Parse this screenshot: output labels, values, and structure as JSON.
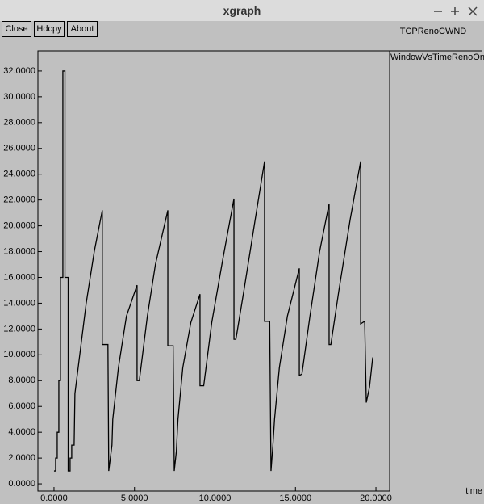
{
  "window": {
    "title": "xgraph",
    "buttons": [
      "Close",
      "Hdcpy",
      "About"
    ]
  },
  "chart_data": {
    "type": "line",
    "ylabel": "TCPRenoCWND",
    "xlabel": "time",
    "series": [
      {
        "name": "WindowVsTimeRenoOne",
        "color": "#000000",
        "x": [
          0,
          0.1,
          0.1,
          0.2,
          0.2,
          0.3,
          0.3,
          0.4,
          0.4,
          0.55,
          0.55,
          0.68,
          0.68,
          0.88,
          0.88,
          1.0,
          1.0,
          1.1,
          1.1,
          1.25,
          1.3,
          1.5,
          2.0,
          2.5,
          3.0,
          3.0,
          3.35,
          3.4,
          3.5,
          3.6,
          3.65,
          4.0,
          4.5,
          5.16,
          5.16,
          5.3,
          5.8,
          6.3,
          7.07,
          7.07,
          7.4,
          7.47,
          7.6,
          7.7,
          8.0,
          8.5,
          9.07,
          9.07,
          9.3,
          9.8,
          10.5,
          11.18,
          11.18,
          11.3,
          11.8,
          12.5,
          13.08,
          13.08,
          13.4,
          13.48,
          13.6,
          13.7,
          14.0,
          14.5,
          15.24,
          15.24,
          15.4,
          15.9,
          16.5,
          17.09,
          17.09,
          17.2,
          17.7,
          18.4,
          19.05,
          19.05,
          19.3,
          19.4,
          19.6,
          19.8
        ],
        "values": [
          1,
          1,
          2,
          2,
          4,
          4,
          8,
          8,
          16,
          16,
          32,
          32,
          16,
          16,
          1,
          1,
          2,
          2,
          3,
          3,
          7,
          9,
          14,
          18,
          21.2,
          10.8,
          10.8,
          1,
          2,
          3,
          5,
          9,
          13,
          15.4,
          8,
          8,
          13,
          17,
          21.2,
          10.7,
          10.7,
          1,
          2.5,
          5,
          9,
          12.5,
          14.7,
          7.6,
          7.6,
          12.5,
          17.5,
          22.1,
          11.2,
          11.2,
          15,
          20.5,
          25,
          12.6,
          12.6,
          1,
          3,
          5,
          9,
          13,
          16.7,
          8.4,
          8.5,
          13,
          18,
          21.7,
          10.8,
          10.8,
          15,
          20.5,
          25,
          12.4,
          12.6,
          6.3,
          7.5,
          9.8
        ]
      }
    ],
    "xlim": [
      -1,
      20.85
    ],
    "ylim": [
      -0.56,
      33.56
    ],
    "xticks": [
      {
        "value": 0,
        "label": "0.0000"
      },
      {
        "value": 5,
        "label": "5.0000"
      },
      {
        "value": 10,
        "label": "10.0000"
      },
      {
        "value": 15,
        "label": "15.0000"
      },
      {
        "value": 20,
        "label": "20.0000"
      }
    ],
    "yticks": [
      {
        "value": 0,
        "label": "0.0000"
      },
      {
        "value": 2,
        "label": "2.0000"
      },
      {
        "value": 4,
        "label": "4.0000"
      },
      {
        "value": 6,
        "label": "6.0000"
      },
      {
        "value": 8,
        "label": "8.0000"
      },
      {
        "value": 10,
        "label": "10.0000"
      },
      {
        "value": 12,
        "label": "12.0000"
      },
      {
        "value": 14,
        "label": "14.0000"
      },
      {
        "value": 16,
        "label": "16.0000"
      },
      {
        "value": 18,
        "label": "18.0000"
      },
      {
        "value": 20,
        "label": "20.0000"
      },
      {
        "value": 22,
        "label": "22.0000"
      },
      {
        "value": 24,
        "label": "24.0000"
      },
      {
        "value": 26,
        "label": "26.0000"
      },
      {
        "value": 28,
        "label": "28.0000"
      },
      {
        "value": 30,
        "label": "30.0000"
      },
      {
        "value": 32,
        "label": "32.0000"
      }
    ]
  }
}
